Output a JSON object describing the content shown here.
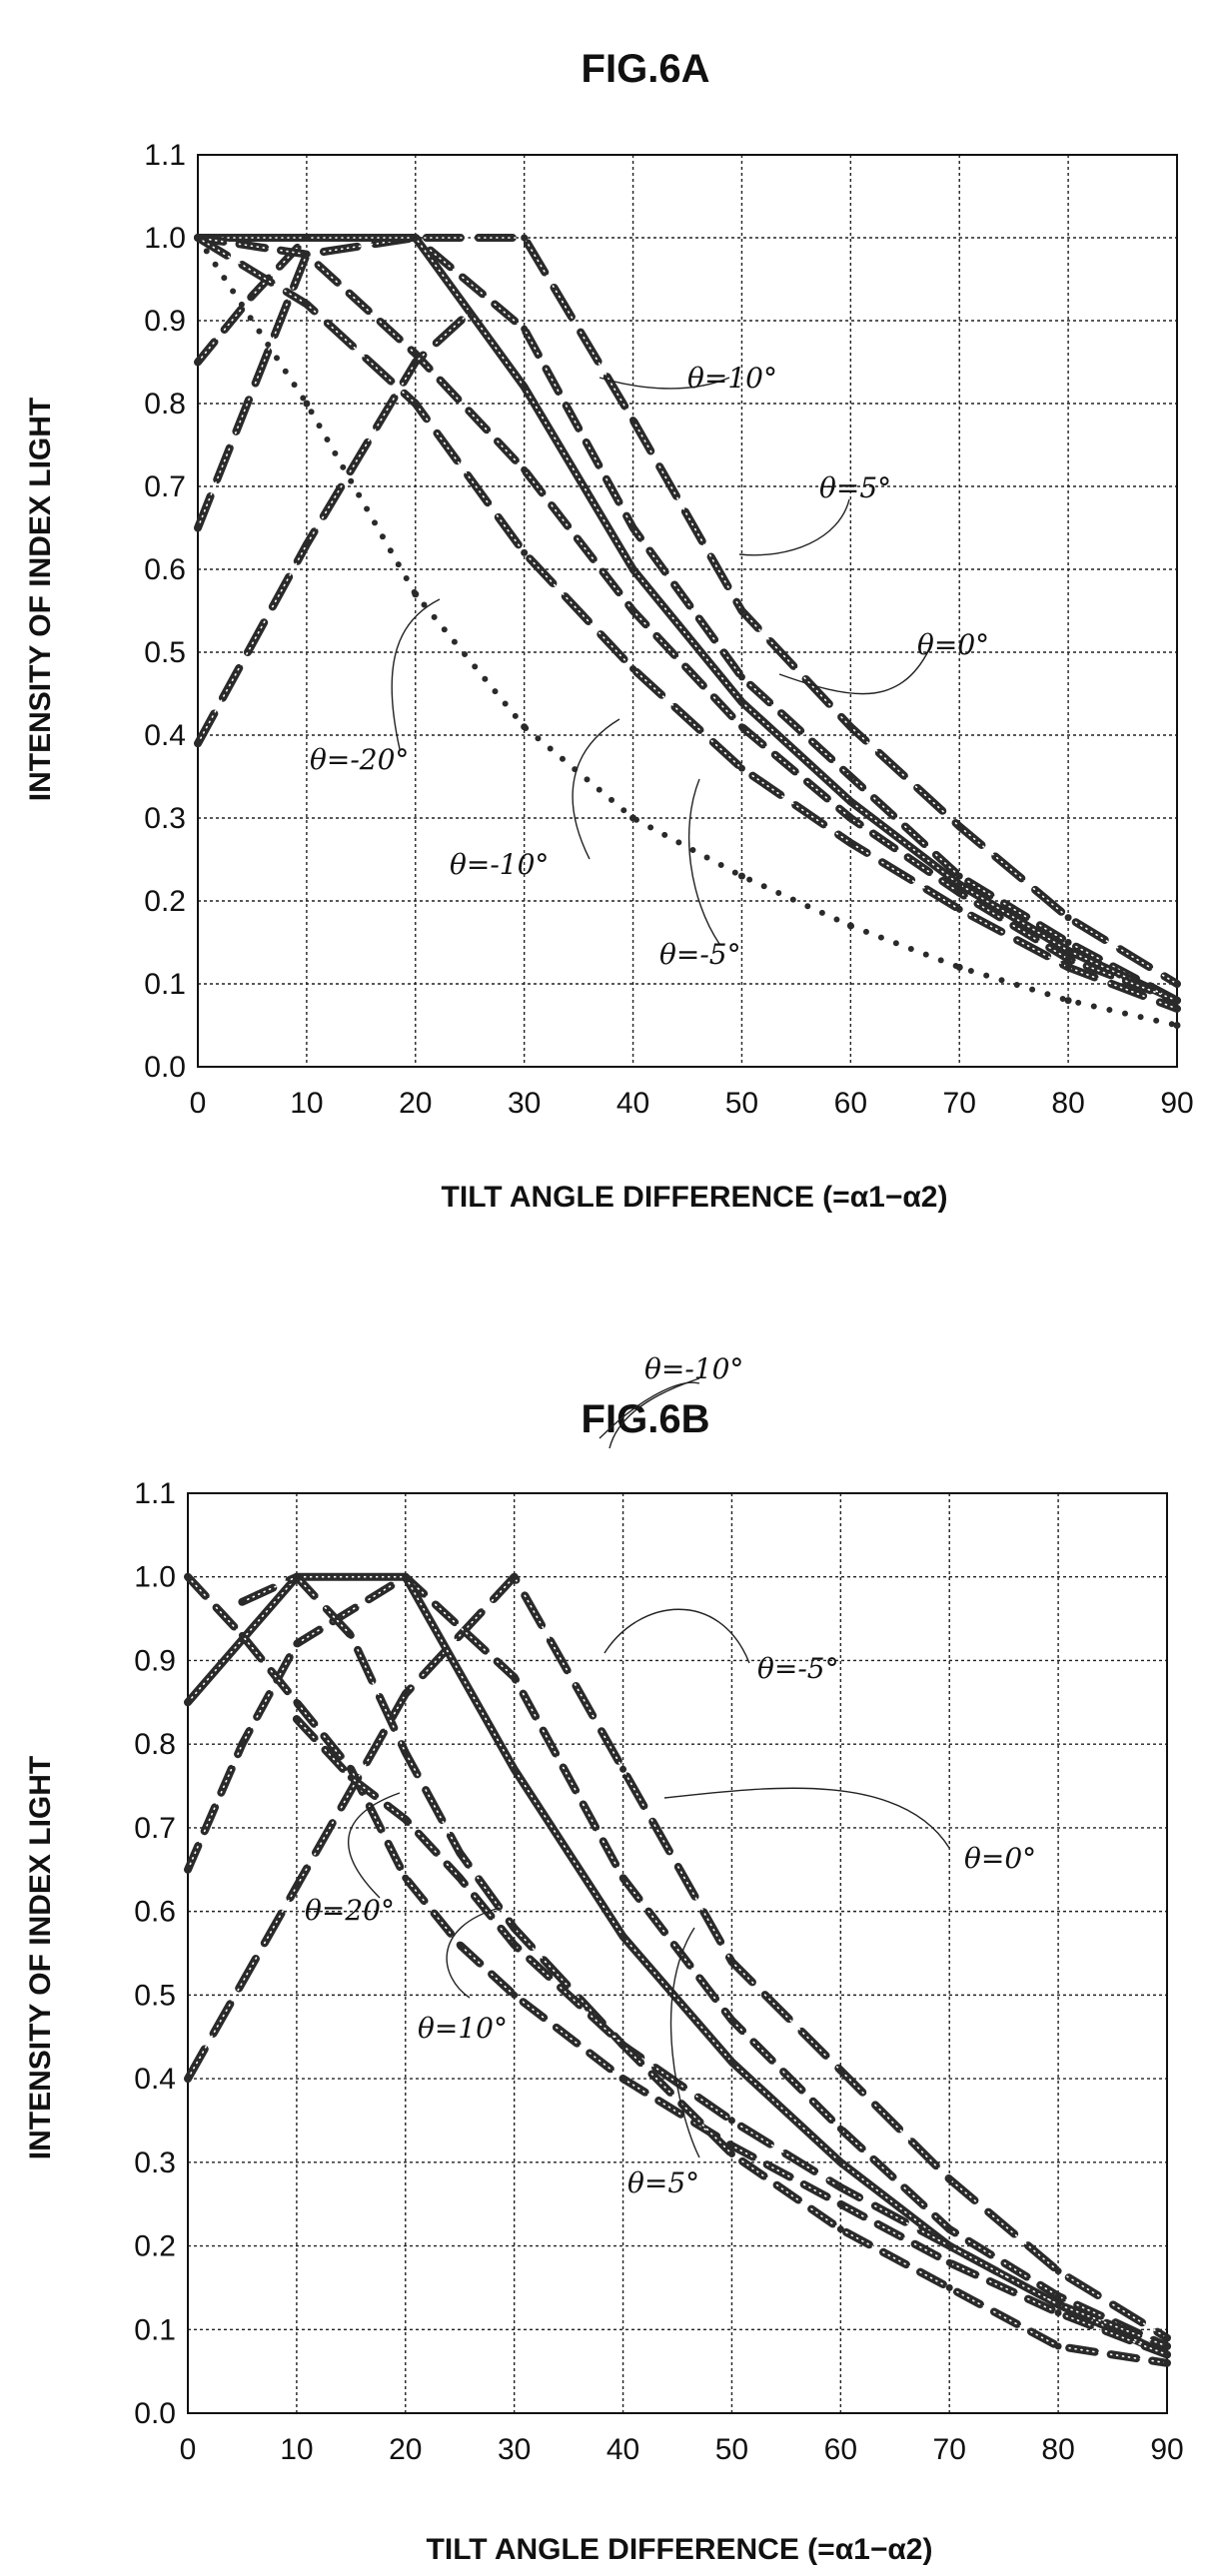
{
  "chart_data": [
    {
      "type": "scatter",
      "title": "FIG.6A",
      "xlabel": "TILT ANGLE DIFFERENCE (=α1−α2)",
      "ylabel": "INTENSITY OF INDEX LIGHT",
      "xlim": [
        0,
        90
      ],
      "ylim": [
        0.0,
        1.1
      ],
      "xticks": [
        "0",
        "10",
        "20",
        "30",
        "40",
        "50",
        "60",
        "70",
        "80",
        "90"
      ],
      "yticks": [
        "0.0",
        "0.1",
        "0.2",
        "0.3",
        "0.4",
        "0.5",
        "0.6",
        "0.7",
        "0.8",
        "0.9",
        "1.0",
        "1.1"
      ],
      "grid": true,
      "series": [
        {
          "name": "θ=10°",
          "style": "dash",
          "x": [
            0,
            10,
            20,
            30,
            40,
            50,
            60,
            70,
            80,
            90
          ],
          "y": [
            0.65,
            0.98,
            1.0,
            1.0,
            0.78,
            0.55,
            0.41,
            0.29,
            0.18,
            0.1
          ]
        },
        {
          "name": "θ=5°",
          "style": "dash",
          "x": [
            0,
            5,
            10,
            20,
            30,
            40,
            50,
            60,
            70,
            80,
            90
          ],
          "y": [
            0.85,
            0.93,
            1.0,
            1.0,
            0.89,
            0.65,
            0.47,
            0.35,
            0.23,
            0.15,
            0.08
          ]
        },
        {
          "name": "θ=0°",
          "style": "solid",
          "x": [
            0,
            10,
            20,
            30,
            40,
            50,
            60,
            70,
            80,
            90
          ],
          "y": [
            1.0,
            1.0,
            1.0,
            0.82,
            0.6,
            0.44,
            0.32,
            0.22,
            0.14,
            0.08
          ]
        },
        {
          "name": "θ=-5°",
          "style": "dash",
          "x": [
            0,
            10,
            20,
            30,
            40,
            50,
            60,
            70,
            80,
            90
          ],
          "y": [
            1.0,
            0.98,
            0.86,
            0.72,
            0.55,
            0.41,
            0.3,
            0.21,
            0.13,
            0.08
          ]
        },
        {
          "name": "θ=-10°",
          "style": "dash",
          "x": [
            0,
            10,
            20,
            30,
            40,
            50,
            60,
            70,
            80,
            90
          ],
          "y": [
            1.0,
            0.92,
            0.8,
            0.62,
            0.48,
            0.36,
            0.27,
            0.19,
            0.12,
            0.07
          ]
        },
        {
          "name": "θ=-20°",
          "style": "dot",
          "x": [
            0,
            10,
            20,
            30,
            40,
            50,
            60,
            70,
            80,
            90
          ],
          "y": [
            1.0,
            0.8,
            0.57,
            0.41,
            0.3,
            0.23,
            0.17,
            0.12,
            0.08,
            0.05
          ]
        },
        {
          "name": "",
          "style": "dash",
          "x": [
            0,
            10,
            20,
            25
          ],
          "y": [
            0.39,
            0.63,
            0.85,
            0.91
          ]
        }
      ],
      "annotations": [
        "θ=10°",
        "θ=5°",
        "θ=0°",
        "θ=-20°",
        "θ=-10°",
        "θ=-5°"
      ]
    },
    {
      "type": "scatter",
      "title": "FIG.6B",
      "xlabel": "TILT ANGLE DIFFERENCE (=α1−α2)",
      "ylabel": "INTENSITY OF INDEX LIGHT",
      "xlim": [
        0,
        90
      ],
      "ylim": [
        0.0,
        1.1
      ],
      "xticks": [
        "0",
        "10",
        "20",
        "30",
        "40",
        "50",
        "60",
        "70",
        "80",
        "90"
      ],
      "yticks": [
        "0.0",
        "0.1",
        "0.2",
        "0.3",
        "0.4",
        "0.5",
        "0.6",
        "0.7",
        "0.8",
        "0.9",
        "1.0",
        "1.1"
      ],
      "grid": true,
      "series": [
        {
          "name": "θ=-10°",
          "style": "dash",
          "x": [
            0,
            10,
            20,
            30,
            40,
            50,
            60,
            70,
            80,
            90
          ],
          "y": [
            0.4,
            0.63,
            0.86,
            1.0,
            0.77,
            0.54,
            0.41,
            0.28,
            0.17,
            0.09
          ]
        },
        {
          "name": "θ=-5°",
          "style": "dash",
          "x": [
            0,
            5,
            10,
            20,
            30,
            40,
            50,
            60,
            70,
            80,
            90
          ],
          "y": [
            0.65,
            0.8,
            0.92,
            1.0,
            0.88,
            0.64,
            0.47,
            0.34,
            0.22,
            0.14,
            0.08
          ]
        },
        {
          "name": "θ=0°",
          "style": "solid",
          "x": [
            0,
            10,
            20,
            30,
            40,
            50,
            60,
            70,
            80,
            90
          ],
          "y": [
            0.85,
            1.0,
            1.0,
            0.77,
            0.57,
            0.42,
            0.3,
            0.2,
            0.13,
            0.07
          ]
        },
        {
          "name": "θ=20°",
          "style": "dash",
          "x": [
            0,
            5,
            10,
            15,
            20,
            25,
            30,
            40,
            50,
            60,
            70,
            80,
            90
          ],
          "y": [
            1.0,
            0.93,
            0.85,
            0.77,
            0.64,
            0.56,
            0.5,
            0.4,
            0.32,
            0.25,
            0.18,
            0.12,
            0.07
          ]
        },
        {
          "name": "θ=10°",
          "style": "dash",
          "x": [
            5,
            10,
            15,
            20,
            25,
            30,
            40,
            50,
            60,
            70,
            80,
            90
          ],
          "y": [
            0.97,
            1.0,
            0.93,
            0.79,
            0.67,
            0.58,
            0.44,
            0.35,
            0.27,
            0.2,
            0.13,
            0.08
          ]
        },
        {
          "name": "θ=5°",
          "style": "dash",
          "x": [
            10,
            15,
            20,
            25,
            30,
            40,
            50,
            60,
            70,
            80,
            90
          ],
          "y": [
            0.83,
            0.76,
            0.71,
            0.64,
            0.56,
            0.44,
            0.31,
            0.22,
            0.15,
            0.08,
            0.06
          ]
        }
      ],
      "annotations": [
        "θ=-10°",
        "θ=-5°",
        "θ=0°",
        "θ=20°",
        "θ=10°",
        "θ=5°"
      ]
    }
  ]
}
